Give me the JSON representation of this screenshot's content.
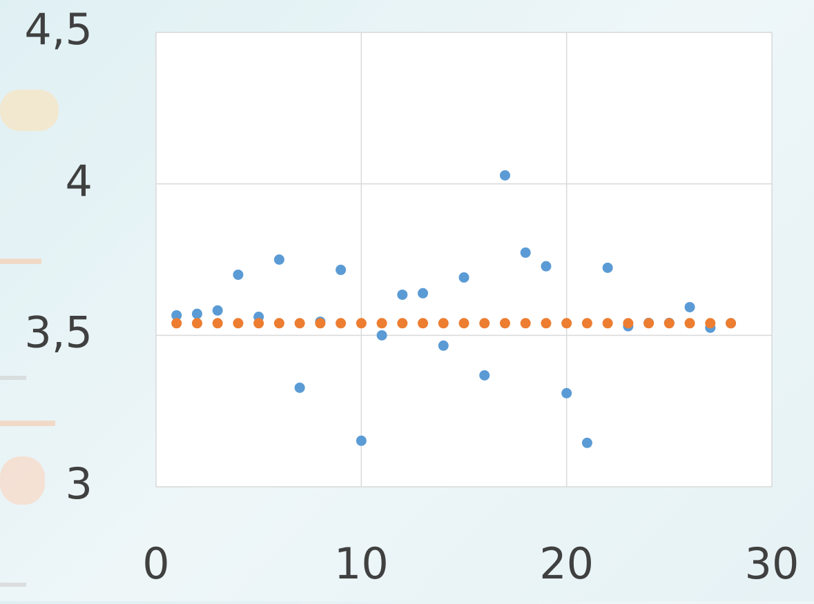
{
  "chart_data": {
    "type": "scatter",
    "x": [
      1,
      2,
      3,
      4,
      5,
      6,
      7,
      8,
      9,
      10,
      11,
      12,
      13,
      14,
      15,
      16,
      17,
      18,
      19,
      20,
      21,
      22,
      23,
      24,
      25,
      26,
      27,
      28
    ],
    "series": [
      {
        "color": "#5b9bd5",
        "values": [
          3.566,
          3.571,
          3.582,
          3.7,
          3.561,
          3.75,
          3.327,
          3.545,
          3.716,
          3.152,
          3.5,
          3.634,
          3.639,
          3.466,
          3.691,
          3.368,
          4.028,
          3.773,
          3.728,
          3.309,
          3.145,
          3.723,
          3.53,
          3.541,
          3.541,
          3.593,
          3.525,
          3.54
        ]
      },
      {
        "color": "#ed7d31",
        "values": [
          3.54,
          3.54,
          3.54,
          3.54,
          3.54,
          3.54,
          3.54,
          3.54,
          3.54,
          3.54,
          3.54,
          3.54,
          3.54,
          3.54,
          3.54,
          3.54,
          3.54,
          3.54,
          3.54,
          3.54,
          3.54,
          3.54,
          3.54,
          3.54,
          3.54,
          3.54,
          3.54,
          3.54
        ]
      }
    ],
    "xlim": [
      0,
      30
    ],
    "xticks": [
      0,
      10,
      20,
      30
    ],
    "ylim": [
      3,
      4.5
    ],
    "yticks": [
      3,
      {
        "value": 3.5,
        "label": "3,5"
      },
      4,
      {
        "value": 4.5,
        "label": "4,5"
      }
    ],
    "grid": true
  }
}
